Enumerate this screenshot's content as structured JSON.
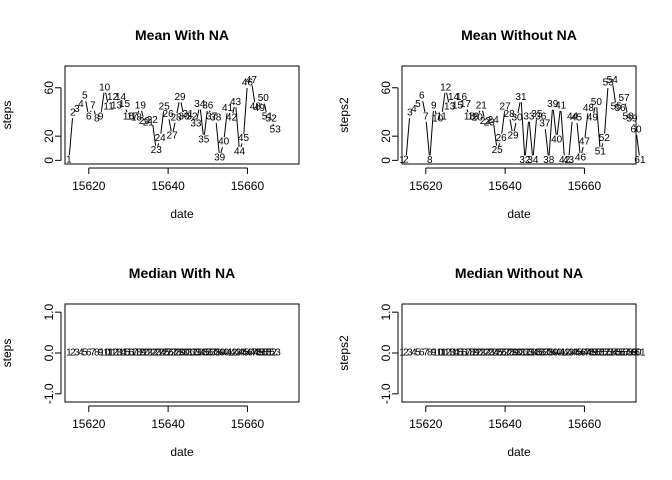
{
  "chart_data": [
    {
      "type": "line",
      "title": "Mean With NA",
      "xlabel": "date",
      "ylabel": "steps",
      "xlim": [
        15614,
        15673
      ],
      "ylim": [
        -3,
        78
      ],
      "xticks": [
        15620,
        15640,
        15660
      ],
      "yticks": [
        0,
        20,
        60
      ],
      "point_labels": [
        "1",
        "2",
        "3",
        "4",
        "5",
        "6",
        "7",
        "8",
        "9",
        "10",
        "11",
        "12",
        "13",
        "14",
        "15",
        "16",
        "17",
        "18",
        "19",
        "20",
        "21",
        "22",
        "23",
        "24",
        "25",
        "26",
        "27",
        "28",
        "29",
        "30",
        "31",
        "32",
        "33",
        "34",
        "35",
        "36",
        "37",
        "38",
        "39",
        "40",
        "41",
        "42",
        "43",
        "44",
        "45",
        "46",
        "47",
        "48",
        "49",
        "50",
        "51",
        "52",
        "53"
      ],
      "x": [
        15615,
        15616,
        15617,
        15618,
        15619,
        15620,
        15621,
        15622,
        15623,
        15624,
        15625,
        15626,
        15627,
        15628,
        15629,
        15630,
        15631,
        15632,
        15633,
        15634,
        15635,
        15636,
        15637,
        15638,
        15639,
        15640,
        15641,
        15642,
        15643,
        15644,
        15645,
        15646,
        15647,
        15648,
        15649,
        15650,
        15651,
        15652,
        15653,
        15654,
        15655,
        15656,
        15657,
        15658,
        15659,
        15660,
        15661,
        15662,
        15663,
        15664,
        15665,
        15666,
        15667
      ],
      "values": [
        0.4,
        39,
        42,
        46,
        53,
        36,
        45,
        34,
        36,
        60,
        44,
        52,
        45,
        52,
        46,
        36,
        36,
        35,
        45,
        32,
        31,
        33,
        8,
        18,
        44,
        38,
        20,
        35,
        52,
        36,
        38,
        36,
        30,
        46,
        17,
        45,
        36,
        35,
        2,
        15,
        43,
        35,
        48,
        7,
        18,
        64,
        66,
        44,
        43,
        51,
        36,
        34,
        25
      ]
    },
    {
      "type": "line",
      "title": "Mean Without NA",
      "xlabel": "date",
      "ylabel": "steps2",
      "xlim": [
        15614,
        15673
      ],
      "ylim": [
        -3,
        78
      ],
      "xticks": [
        15620,
        15640,
        15660
      ],
      "yticks": [
        0,
        20,
        60
      ],
      "point_labels": [
        "1",
        "2",
        "3",
        "4",
        "5",
        "6",
        "7",
        "8",
        "9",
        "10",
        "11",
        "12",
        "13",
        "14",
        "15",
        "16",
        "17",
        "18",
        "19",
        "20",
        "21",
        "22",
        "23",
        "24",
        "25",
        "26",
        "27",
        "28",
        "29",
        "30",
        "31",
        "32",
        "33",
        "34",
        "35",
        "36",
        "37",
        "38",
        "39",
        "40",
        "41",
        "42",
        "43",
        "44",
        "45",
        "46",
        "47",
        "48",
        "49",
        "50",
        "51",
        "52",
        "53",
        "54",
        "55",
        "56",
        "57",
        "58",
        "59",
        "60",
        "61"
      ],
      "x": [
        15614,
        15615,
        15616,
        15617,
        15618,
        15619,
        15620,
        15621,
        15622,
        15623,
        15624,
        15625,
        15626,
        15627,
        15628,
        15629,
        15630,
        15631,
        15632,
        15633,
        15634,
        15635,
        15636,
        15637,
        15638,
        15639,
        15640,
        15641,
        15642,
        15643,
        15644,
        15645,
        15646,
        15647,
        15648,
        15649,
        15650,
        15651,
        15652,
        15653,
        15654,
        15655,
        15656,
        15657,
        15658,
        15659,
        15660,
        15661,
        15662,
        15663,
        15664,
        15665,
        15666,
        15667,
        15668,
        15669,
        15670,
        15671,
        15672,
        15673,
        15674
      ],
      "values": [
        0,
        0.4,
        39,
        42,
        46,
        53,
        36,
        0,
        45,
        34,
        36,
        60,
        44,
        52,
        45,
        52,
        46,
        36,
        36,
        35,
        45,
        32,
        31,
        33,
        8,
        18,
        44,
        38,
        20,
        35,
        52,
        0,
        36,
        0,
        38,
        36,
        30,
        0,
        46,
        17,
        45,
        0,
        0,
        36,
        35,
        2,
        15,
        43,
        35,
        48,
        7,
        18,
        64,
        66,
        44,
        43,
        51,
        36,
        34,
        25,
        0
      ]
    },
    {
      "type": "line",
      "title": "Median With NA",
      "xlabel": "date",
      "ylabel": "steps",
      "xlim": [
        15614,
        15673
      ],
      "ylim": [
        -1.2,
        1.2
      ],
      "xticks": [
        15620,
        15640,
        15660
      ],
      "yticks": [
        -1.0,
        0.0,
        1.0
      ],
      "yticklabels": [
        "-1.0",
        "0.0",
        "1.0"
      ],
      "point_labels": [
        "1",
        "2",
        "3",
        "4",
        "5",
        "6",
        "7",
        "8",
        "9",
        "10",
        "11",
        "12",
        "13",
        "14",
        "15",
        "16",
        "17",
        "18",
        "19",
        "20",
        "21",
        "22",
        "23",
        "24",
        "25",
        "26",
        "27",
        "28",
        "29",
        "30",
        "31",
        "32",
        "33",
        "34",
        "35",
        "36",
        "37",
        "38",
        "39",
        "40",
        "41",
        "42",
        "43",
        "44",
        "45",
        "46",
        "47",
        "48",
        "49",
        "50",
        "51",
        "52",
        "53"
      ],
      "x": [
        15615,
        15616,
        15617,
        15618,
        15619,
        15620,
        15621,
        15622,
        15623,
        15624,
        15625,
        15626,
        15627,
        15628,
        15629,
        15630,
        15631,
        15632,
        15633,
        15634,
        15635,
        15636,
        15637,
        15638,
        15639,
        15640,
        15641,
        15642,
        15643,
        15644,
        15645,
        15646,
        15647,
        15648,
        15649,
        15650,
        15651,
        15652,
        15653,
        15654,
        15655,
        15656,
        15657,
        15658,
        15659,
        15660,
        15661,
        15662,
        15663,
        15664,
        15665,
        15666,
        15667
      ],
      "values": [
        0,
        0,
        0,
        0,
        0,
        0,
        0,
        0,
        0,
        0,
        0,
        0,
        0,
        0,
        0,
        0,
        0,
        0,
        0,
        0,
        0,
        0,
        0,
        0,
        0,
        0,
        0,
        0,
        0,
        0,
        0,
        0,
        0,
        0,
        0,
        0,
        0,
        0,
        0,
        0,
        0,
        0,
        0,
        0,
        0,
        0,
        0,
        0,
        0,
        0,
        0,
        0,
        0
      ]
    },
    {
      "type": "line",
      "title": "Median Without NA",
      "xlabel": "date",
      "ylabel": "steps2",
      "xlim": [
        15614,
        15673
      ],
      "ylim": [
        -1.2,
        1.2
      ],
      "xticks": [
        15620,
        15640,
        15660
      ],
      "yticks": [
        -1.0,
        0.0,
        1.0
      ],
      "yticklabels": [
        "-1.0",
        "0.0",
        "1.0"
      ],
      "point_labels": [
        "1",
        "2",
        "3",
        "4",
        "5",
        "6",
        "7",
        "8",
        "9",
        "10",
        "11",
        "12",
        "13",
        "14",
        "15",
        "16",
        "17",
        "18",
        "19",
        "20",
        "21",
        "22",
        "23",
        "24",
        "25",
        "26",
        "27",
        "28",
        "29",
        "30",
        "31",
        "32",
        "33",
        "34",
        "35",
        "36",
        "37",
        "38",
        "39",
        "40",
        "41",
        "42",
        "43",
        "44",
        "45",
        "46",
        "47",
        "48",
        "49",
        "50",
        "51",
        "52",
        "53",
        "54",
        "55",
        "56",
        "57",
        "58",
        "59",
        "60",
        "61"
      ],
      "x": [
        15614,
        15615,
        15616,
        15617,
        15618,
        15619,
        15620,
        15621,
        15622,
        15623,
        15624,
        15625,
        15626,
        15627,
        15628,
        15629,
        15630,
        15631,
        15632,
        15633,
        15634,
        15635,
        15636,
        15637,
        15638,
        15639,
        15640,
        15641,
        15642,
        15643,
        15644,
        15645,
        15646,
        15647,
        15648,
        15649,
        15650,
        15651,
        15652,
        15653,
        15654,
        15655,
        15656,
        15657,
        15658,
        15659,
        15660,
        15661,
        15662,
        15663,
        15664,
        15665,
        15666,
        15667,
        15668,
        15669,
        15670,
        15671,
        15672,
        15673,
        15674
      ],
      "values": [
        0,
        0,
        0,
        0,
        0,
        0,
        0,
        0,
        0,
        0,
        0,
        0,
        0,
        0,
        0,
        0,
        0,
        0,
        0,
        0,
        0,
        0,
        0,
        0,
        0,
        0,
        0,
        0,
        0,
        0,
        0,
        0,
        0,
        0,
        0,
        0,
        0,
        0,
        0,
        0,
        0,
        0,
        0,
        0,
        0,
        0,
        0,
        0,
        0,
        0,
        0,
        0,
        0,
        0,
        0,
        0,
        0,
        0,
        0,
        0,
        0
      ]
    }
  ]
}
